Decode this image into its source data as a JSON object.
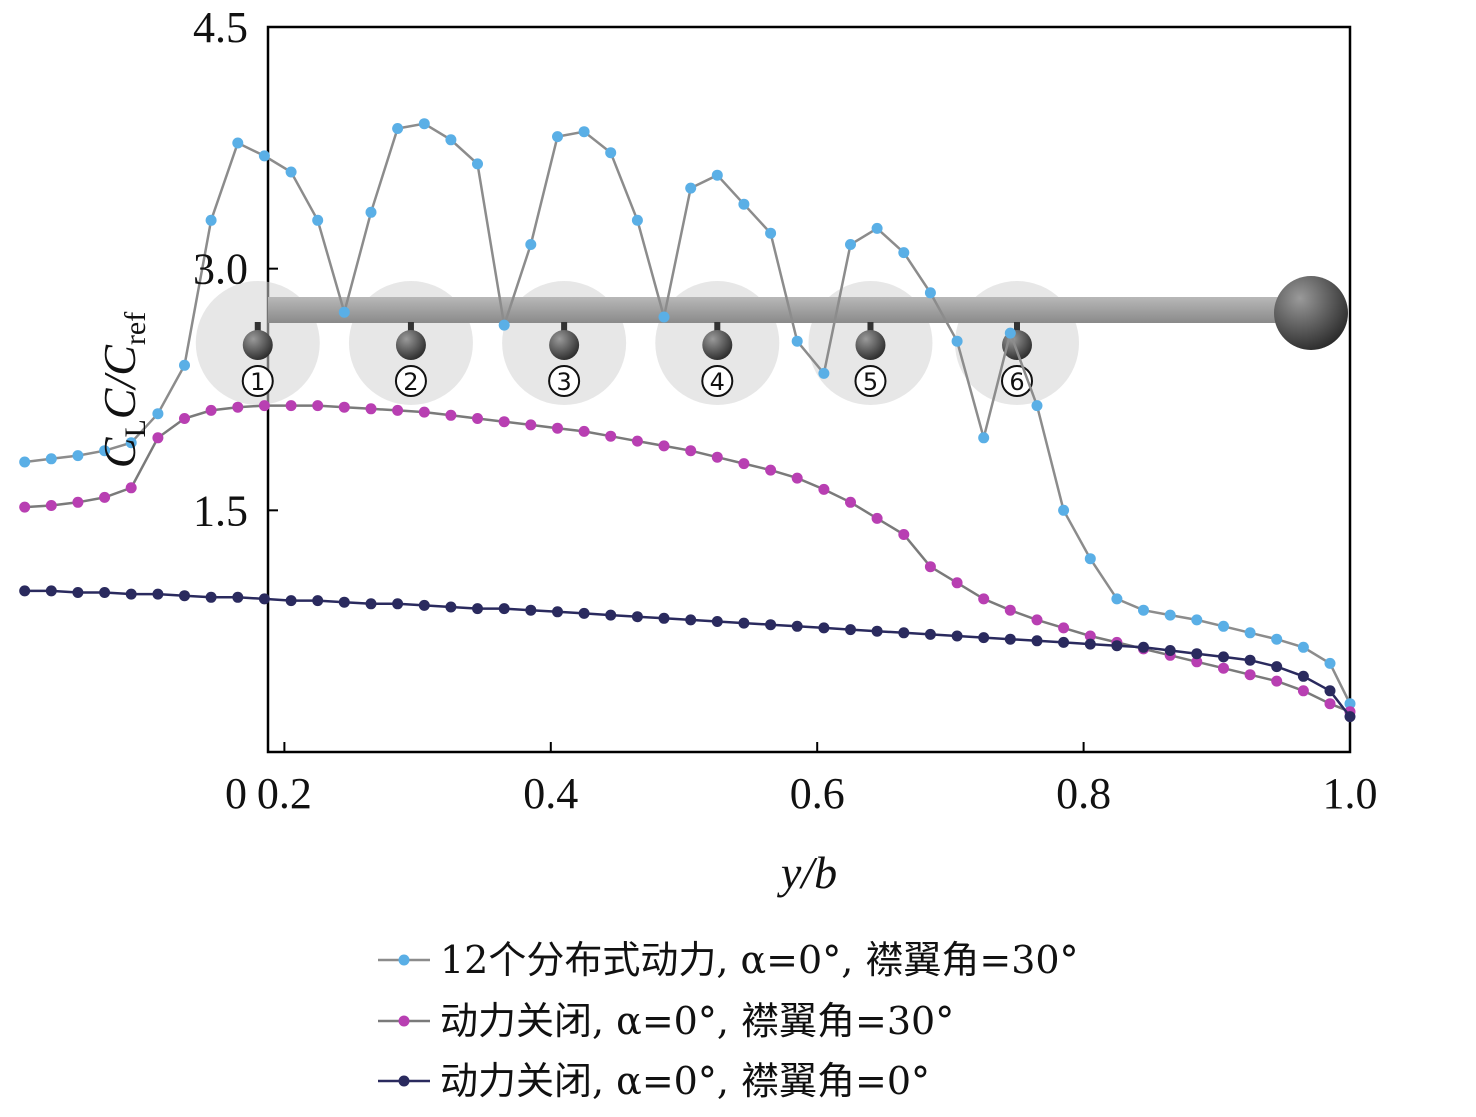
{
  "chart_data": {
    "type": "line",
    "xlabel": "y/b",
    "ylabel": {
      "main": "C",
      "sub1": "L",
      "mid": "C/C",
      "sub2": "ref"
    },
    "xlim": [
      0,
      1.0
    ],
    "ylim": [
      0,
      4.5
    ],
    "x_ticks": [
      "0",
      "0.2",
      "0.4",
      "0.6",
      "0.8",
      "1.0"
    ],
    "x_tick_values": [
      0,
      0.2,
      0.4,
      0.6,
      0.8,
      1.0
    ],
    "y_ticks": [
      "1.5",
      "3.0",
      "4.5"
    ],
    "y_tick_values": [
      1.5,
      3.0,
      4.5
    ],
    "grid": false,
    "legend_position": "bottom",
    "engine_labels": [
      "①",
      "②",
      "③",
      "④",
      "⑤",
      "⑥"
    ],
    "engine_positions": [
      0.18,
      0.295,
      0.41,
      0.525,
      0.64,
      0.75
    ],
    "series": [
      {
        "name": "12个分布式动力, α=0°, 襟翼角=30°",
        "color": "#5aafe6",
        "line_color": "#8c8c8c",
        "x": [
          0.005,
          0.025,
          0.045,
          0.065,
          0.085,
          0.105,
          0.125,
          0.145,
          0.165,
          0.185,
          0.205,
          0.225,
          0.245,
          0.265,
          0.285,
          0.305,
          0.325,
          0.345,
          0.365,
          0.385,
          0.405,
          0.425,
          0.445,
          0.465,
          0.485,
          0.505,
          0.525,
          0.545,
          0.565,
          0.585,
          0.605,
          0.625,
          0.645,
          0.665,
          0.685,
          0.705,
          0.725,
          0.745,
          0.765,
          0.785,
          0.805,
          0.825,
          0.845,
          0.865,
          0.885,
          0.905,
          0.925,
          0.945,
          0.965,
          0.985,
          1.0
        ],
        "values": [
          1.8,
          1.82,
          1.84,
          1.87,
          1.92,
          2.1,
          2.4,
          3.3,
          3.78,
          3.7,
          3.6,
          3.3,
          2.73,
          3.35,
          3.87,
          3.9,
          3.8,
          3.65,
          2.65,
          3.15,
          3.82,
          3.85,
          3.72,
          3.3,
          2.7,
          3.5,
          3.58,
          3.4,
          3.22,
          2.55,
          2.35,
          3.15,
          3.25,
          3.1,
          2.85,
          2.55,
          1.95,
          2.6,
          2.15,
          1.5,
          1.2,
          0.95,
          0.88,
          0.85,
          0.82,
          0.78,
          0.74,
          0.7,
          0.65,
          0.55,
          0.3
        ]
      },
      {
        "name": "动力关闭, α=0°, 襟翼角=30°",
        "color": "#b83fb2",
        "line_color": "#7a7a7a",
        "x": [
          0.005,
          0.025,
          0.045,
          0.065,
          0.085,
          0.105,
          0.125,
          0.145,
          0.165,
          0.185,
          0.205,
          0.225,
          0.245,
          0.265,
          0.285,
          0.305,
          0.325,
          0.345,
          0.365,
          0.385,
          0.405,
          0.425,
          0.445,
          0.465,
          0.485,
          0.505,
          0.525,
          0.545,
          0.565,
          0.585,
          0.605,
          0.625,
          0.645,
          0.665,
          0.685,
          0.705,
          0.725,
          0.745,
          0.765,
          0.785,
          0.805,
          0.825,
          0.845,
          0.865,
          0.885,
          0.905,
          0.925,
          0.945,
          0.965,
          0.985,
          1.0
        ],
        "values": [
          1.52,
          1.53,
          1.55,
          1.58,
          1.64,
          1.95,
          2.07,
          2.12,
          2.14,
          2.15,
          2.15,
          2.15,
          2.14,
          2.13,
          2.12,
          2.11,
          2.09,
          2.07,
          2.05,
          2.03,
          2.01,
          1.99,
          1.96,
          1.93,
          1.9,
          1.87,
          1.83,
          1.79,
          1.75,
          1.7,
          1.63,
          1.55,
          1.45,
          1.35,
          1.15,
          1.05,
          0.95,
          0.88,
          0.82,
          0.77,
          0.72,
          0.68,
          0.64,
          0.6,
          0.56,
          0.52,
          0.48,
          0.44,
          0.38,
          0.3,
          0.25
        ]
      },
      {
        "name": "动力关闭, α=0°, 襟翼角=0°",
        "color": "#2a2a5e",
        "line_color": "#2a2a5e",
        "x": [
          0.005,
          0.025,
          0.045,
          0.065,
          0.085,
          0.105,
          0.125,
          0.145,
          0.165,
          0.185,
          0.205,
          0.225,
          0.245,
          0.265,
          0.285,
          0.305,
          0.325,
          0.345,
          0.365,
          0.385,
          0.405,
          0.425,
          0.445,
          0.465,
          0.485,
          0.505,
          0.525,
          0.545,
          0.565,
          0.585,
          0.605,
          0.625,
          0.645,
          0.665,
          0.685,
          0.705,
          0.725,
          0.745,
          0.765,
          0.785,
          0.805,
          0.825,
          0.845,
          0.865,
          0.885,
          0.905,
          0.925,
          0.945,
          0.965,
          0.985,
          1.0
        ],
        "values": [
          1.0,
          1.0,
          0.99,
          0.99,
          0.98,
          0.98,
          0.97,
          0.96,
          0.96,
          0.95,
          0.94,
          0.94,
          0.93,
          0.92,
          0.92,
          0.91,
          0.9,
          0.89,
          0.89,
          0.88,
          0.87,
          0.86,
          0.85,
          0.84,
          0.83,
          0.82,
          0.81,
          0.8,
          0.79,
          0.78,
          0.77,
          0.76,
          0.75,
          0.74,
          0.73,
          0.72,
          0.71,
          0.7,
          0.69,
          0.68,
          0.67,
          0.66,
          0.65,
          0.63,
          0.61,
          0.59,
          0.57,
          0.53,
          0.47,
          0.38,
          0.22
        ]
      }
    ]
  }
}
